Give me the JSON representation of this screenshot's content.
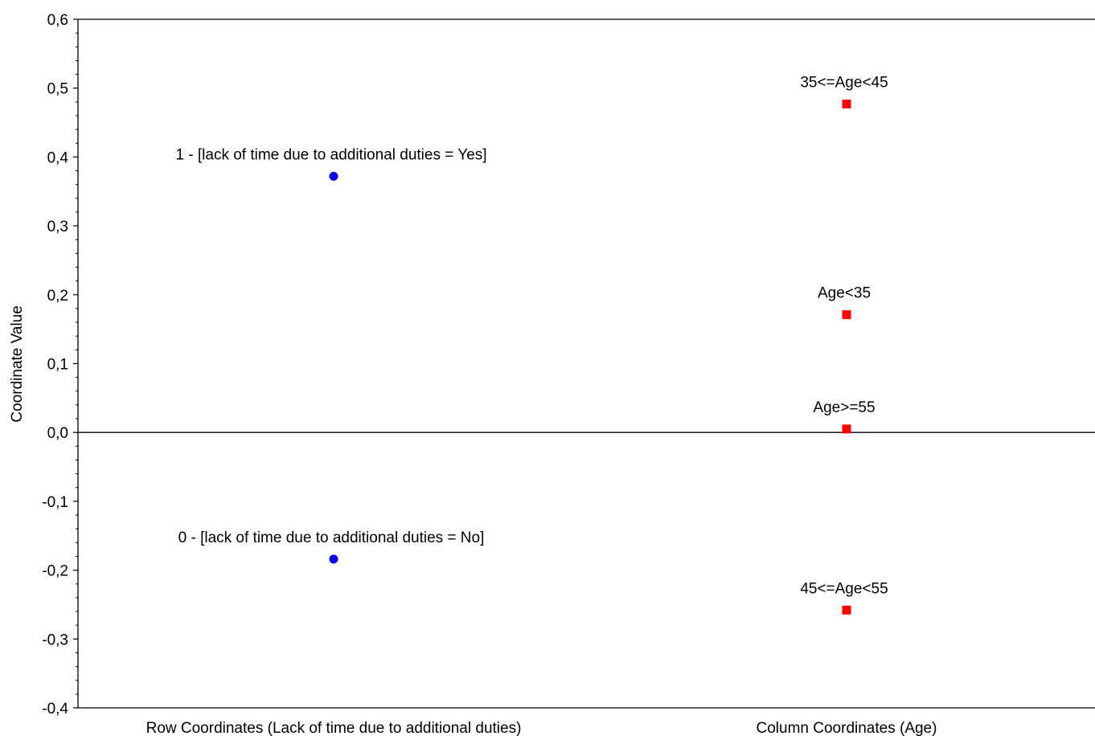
{
  "chart_data": {
    "type": "scatter",
    "title": "",
    "ylabel": "Coordinate Value",
    "xlabel": "",
    "ylim": [
      -0.4,
      0.6
    ],
    "y_ticks": [
      "-0,4",
      "-0,3",
      "-0,2",
      "-0,1",
      "0,0",
      "0,1",
      "0,2",
      "0,3",
      "0,4",
      "0,5",
      "0,6"
    ],
    "y_tick_values": [
      -0.4,
      -0.3,
      -0.2,
      -0.1,
      0.0,
      0.1,
      0.2,
      0.3,
      0.4,
      0.5,
      0.6
    ],
    "grid": false,
    "zero_line": true,
    "categories": [
      "Row Coordinates (Lack of time due to additional duties)",
      "Column Coordinates (Age)"
    ],
    "series": [
      {
        "color": "#0000ee",
        "marker": "circle",
        "category_index": 0,
        "points": [
          {
            "label": "1 - [lack of time due to additional duties = Yes]",
            "y": 0.372
          },
          {
            "label": "0 - [lack of time due to additional duties = No]",
            "y": -0.184
          }
        ]
      },
      {
        "color": "#ff0000",
        "marker": "square",
        "category_index": 1,
        "points": [
          {
            "label": "35<=Age<45",
            "y": 0.477
          },
          {
            "label": "Age<35",
            "y": 0.171
          },
          {
            "label": "Age>=55",
            "y": 0.005
          },
          {
            "label": "45<=Age<55",
            "y": -0.258
          }
        ]
      }
    ]
  }
}
